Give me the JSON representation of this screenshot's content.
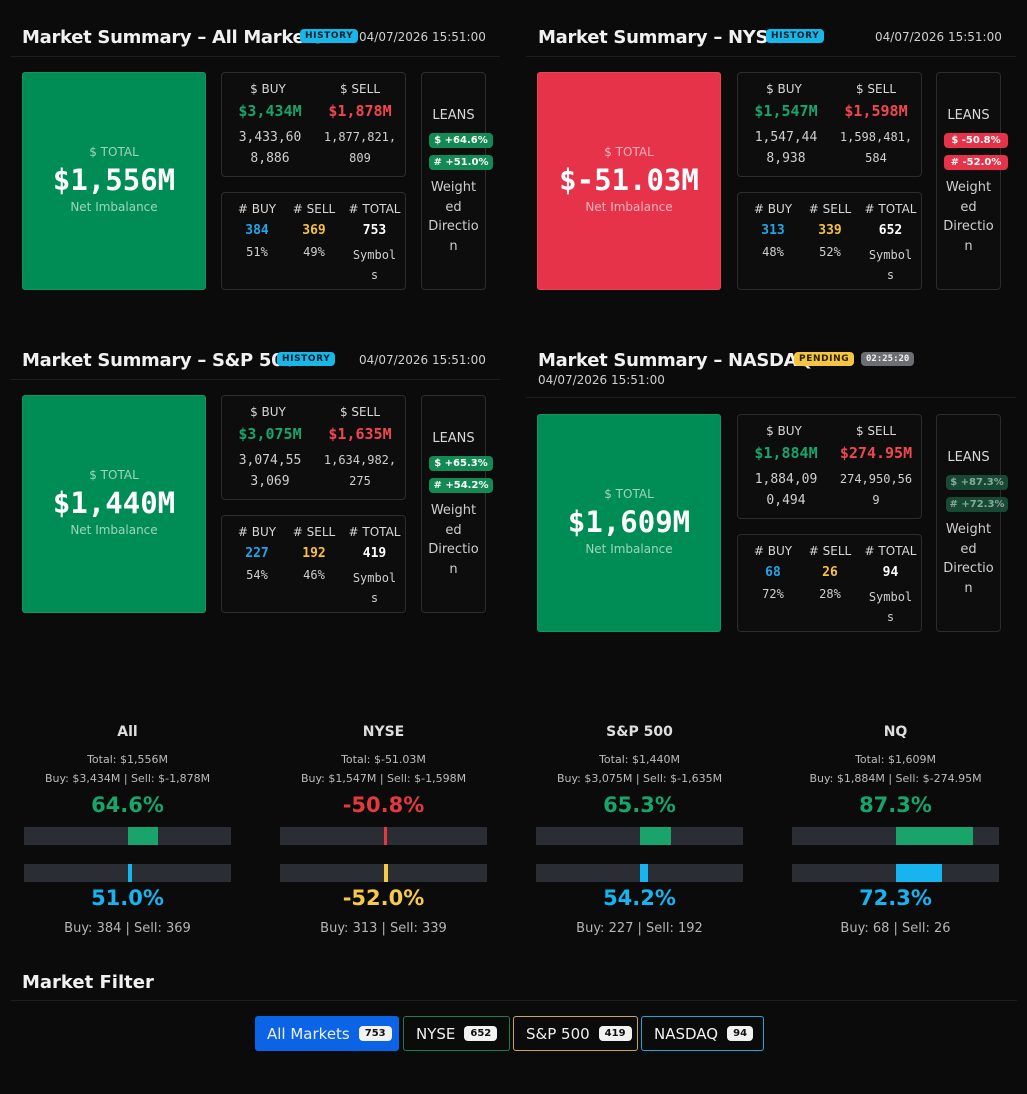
{
  "panels": {
    "all": {
      "title": "Market Summary – All Markets",
      "badge": "HISTORY",
      "time": "04/07/2026 15:51:00",
      "total_label": "$ TOTAL",
      "total_value": "$1,556M",
      "net_label": "Net Imbalance",
      "buy_label": "$ BUY",
      "sell_label": "$ SELL",
      "buy_value": "$3,434M",
      "sell_value": "$1,878M",
      "buy_full": [
        "3,433,60",
        "8,886"
      ],
      "sell_full": [
        "1,877,821,",
        "809"
      ],
      "nbuy_label": "# BUY",
      "nsell_label": "# SELL",
      "ntotal_label": "# TOTAL",
      "nbuy": "384",
      "nsell": "369",
      "ntotal": "753",
      "pbuy": "51%",
      "psell": "49%",
      "symbols": [
        "Symbol",
        "s"
      ],
      "leans_label": "LEANS",
      "lean1": "$ +64.6%",
      "lean2": "# +51.0%",
      "weighted": [
        "Weight",
        "ed",
        "Directio",
        "n"
      ]
    },
    "nyse": {
      "title": "Market Summary – NYSE",
      "badge": "HISTORY",
      "time": "04/07/2026 15:51:00",
      "total_label": "$ TOTAL",
      "total_value": "$-51.03M",
      "net_label": "Net Imbalance",
      "buy_label": "$ BUY",
      "sell_label": "$ SELL",
      "buy_value": "$1,547M",
      "sell_value": "$1,598M",
      "buy_full": [
        "1,547,44",
        "8,938"
      ],
      "sell_full": [
        "1,598,481,",
        "584"
      ],
      "nbuy_label": "# BUY",
      "nsell_label": "# SELL",
      "ntotal_label": "# TOTAL",
      "nbuy": "313",
      "nsell": "339",
      "ntotal": "652",
      "pbuy": "48%",
      "psell": "52%",
      "symbols": [
        "Symbol",
        "s"
      ],
      "leans_label": "LEANS",
      "lean1": "$ -50.8%",
      "lean2": "# -52.0%",
      "weighted": [
        "Weight",
        "ed",
        "Directio",
        "n"
      ]
    },
    "sp500": {
      "title": "Market Summary – S&P 500",
      "badge": "HISTORY",
      "time": "04/07/2026 15:51:00",
      "total_label": "$ TOTAL",
      "total_value": "$1,440M",
      "net_label": "Net Imbalance",
      "buy_label": "$ BUY",
      "sell_label": "$ SELL",
      "buy_value": "$3,075M",
      "sell_value": "$1,635M",
      "buy_full": [
        "3,074,55",
        "3,069"
      ],
      "sell_full": [
        "1,634,982,",
        "275"
      ],
      "nbuy_label": "# BUY",
      "nsell_label": "# SELL",
      "ntotal_label": "# TOTAL",
      "nbuy": "227",
      "nsell": "192",
      "ntotal": "419",
      "pbuy": "54%",
      "psell": "46%",
      "symbols": [
        "Symbol",
        "s"
      ],
      "leans_label": "LEANS",
      "lean1": "$ +65.3%",
      "lean2": "# +54.2%",
      "weighted": [
        "Weight",
        "ed",
        "Directio",
        "n"
      ]
    },
    "nasdaq": {
      "title": "Market Summary – NASDAQ",
      "badge": "PENDING",
      "timer": "02:25:20",
      "time": "04/07/2026 15:51:00",
      "total_label": "$ TOTAL",
      "total_value": "$1,609M",
      "net_label": "Net Imbalance",
      "buy_label": "$ BUY",
      "sell_label": "$ SELL",
      "buy_value": "$1,884M",
      "sell_value": "$274.95M",
      "buy_full": [
        "1,884,09",
        "0,494"
      ],
      "sell_full": [
        "274,950,56",
        "9"
      ],
      "nbuy_label": "# BUY",
      "nsell_label": "# SELL",
      "ntotal_label": "# TOTAL",
      "nbuy": "68",
      "nsell": "26",
      "ntotal": "94",
      "pbuy": "72%",
      "psell": "28%",
      "symbols": [
        "Symbol",
        "s"
      ],
      "leans_label": "LEANS",
      "lean1": "$ +87.3%",
      "lean2": "# +72.3%",
      "weighted": [
        "Weight",
        "ed",
        "Directio",
        "n"
      ]
    }
  },
  "summary": [
    {
      "title": "All",
      "total": "Total: $1,556M",
      "buysell": "Buy: $3,434M | Sell: $-1,878M",
      "dollar_pct": "64.6%",
      "dollar_lean": 0.646,
      "count_pct": "51.0%",
      "count_lean": 0.51,
      "foot": "Buy: 384 | Sell: 369"
    },
    {
      "title": "NYSE",
      "total": "Total: $-51.03M",
      "buysell": "Buy: $1,547M | Sell: $-1,598M",
      "dollar_pct": "-50.8%",
      "dollar_lean": -0.508,
      "count_pct": "-52.0%",
      "count_lean": -0.52,
      "foot": "Buy: 313 | Sell: 339"
    },
    {
      "title": "S&P 500",
      "total": "Total: $1,440M",
      "buysell": "Buy: $3,075M | Sell: $-1,635M",
      "dollar_pct": "65.3%",
      "dollar_lean": 0.653,
      "count_pct": "54.2%",
      "count_lean": 0.542,
      "foot": "Buy: 227 | Sell: 192"
    },
    {
      "title": "NQ",
      "total": "Total: $1,609M",
      "buysell": "Buy: $1,884M | Sell: $-274.95M",
      "dollar_pct": "87.3%",
      "dollar_lean": 0.873,
      "count_pct": "72.3%",
      "count_lean": 0.723,
      "foot": "Buy: 68 | Sell: 26"
    }
  ],
  "colors": {
    "positive": "#18a46a",
    "negative": "#e23a3f",
    "count_positive": "#17b4f0",
    "count_negative": "#f6c94a",
    "bar_track": "#2a2d33"
  },
  "filter": {
    "title": "Market Filter",
    "buttons": [
      {
        "label": "All Markets",
        "count": "753",
        "active": true
      },
      {
        "label": "NYSE",
        "count": "652"
      },
      {
        "label": "S&P 500",
        "count": "419"
      },
      {
        "label": "NASDAQ",
        "count": "94"
      }
    ]
  }
}
